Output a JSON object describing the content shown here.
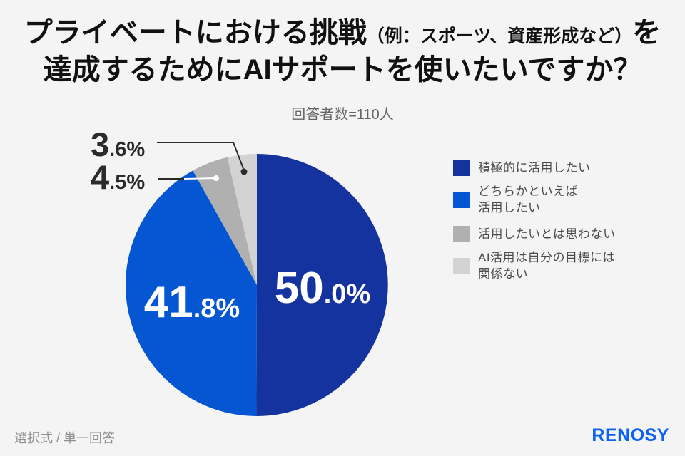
{
  "title": {
    "line1_main": "プライベートにおける挑戦",
    "line1_note": "（例：スポーツ、資産形成など）",
    "line1_suffix": "を",
    "line2": "達成するためにAIサポートを使いたいですか？"
  },
  "subtitle": "回答者数=110人",
  "footer": {
    "method": "選択式 / 単一回答",
    "brand": "RENOSY"
  },
  "colors": {
    "background": "#F4F4F4",
    "title_text": "#111111",
    "subtitle_text": "#666666",
    "legend_text": "#4A4A4A",
    "callout_text": "#2B2B2B",
    "footer_text": "#909090",
    "brand_blue": "#0E62F2",
    "pie_label_text": "#FFFFFF"
  },
  "chart_data": {
    "type": "pie",
    "title": "プライベートにおける挑戦（例：スポーツ、資産形成など）を達成するためにAIサポートを使いたいですか？",
    "subtitle": "回答者数=110人",
    "respondents": 110,
    "categories": [
      "積極的に活用したい",
      "どちらかといえば活用したい",
      "活用したいとは思わない",
      "AI活用は自分の目標には関係ない"
    ],
    "values": [
      50.0,
      41.8,
      4.5,
      3.6
    ],
    "colors": [
      "#15339E",
      "#0556D2",
      "#B0B0B0",
      "#D3D3D3"
    ],
    "start_angle_deg": -90,
    "direction": "clockwise",
    "labels_display": [
      {
        "main": "50",
        "rest": ".0%"
      },
      {
        "main": "41",
        "rest": ".8%"
      },
      {
        "main": "4",
        "rest": ".5%"
      },
      {
        "main": "3",
        "rest": ".6%"
      }
    ],
    "legend_position": "right",
    "legend": [
      {
        "label": "積極的に活用したい",
        "color": "#15339E"
      },
      {
        "label": "どちらかといえば\n活用したい",
        "color": "#0556D2"
      },
      {
        "label": "活用したいとは思わない",
        "color": "#B0B0B0"
      },
      {
        "label": "AI活用は自分の目標には\n関係ない",
        "color": "#D3D3D3"
      }
    ]
  }
}
